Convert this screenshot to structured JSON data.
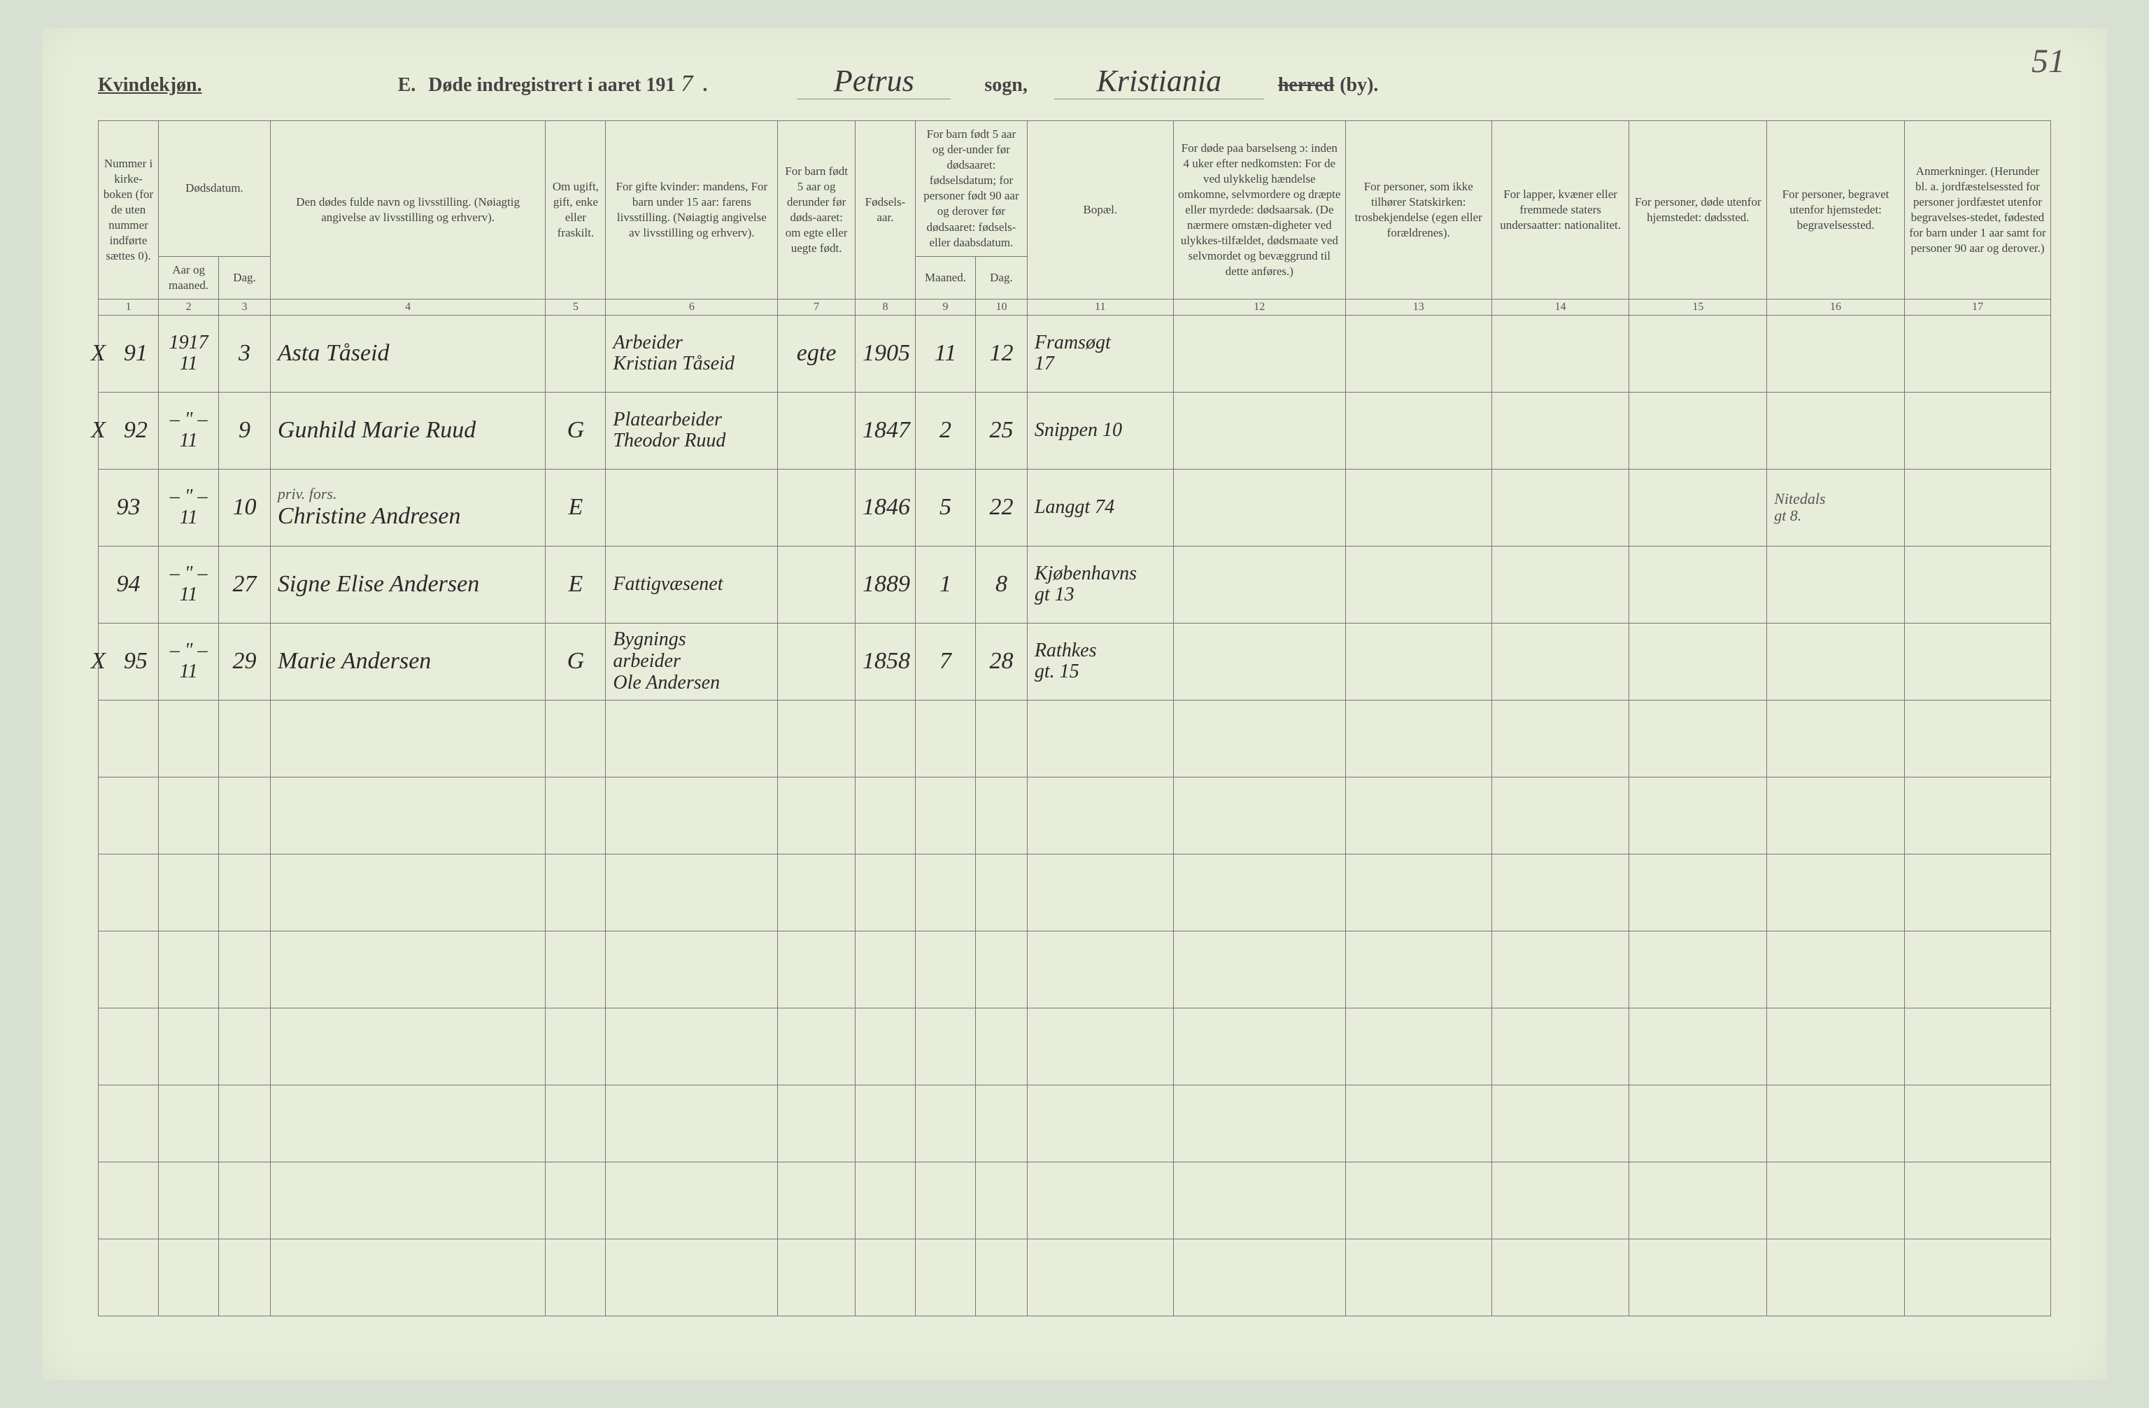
{
  "page_number_handwritten": "51",
  "header": {
    "gender_label": "Kvindekjøn.",
    "form_letter": "E.",
    "title_prefix": "Døde indregistrert i aaret 191",
    "year_suffix_hw": "7",
    "period": ".",
    "parish_hw": "Petrus",
    "sogn_label": "sogn,",
    "city_hw": "Kristiania",
    "herred_struck": "herred",
    "by_label": "(by)."
  },
  "columns": {
    "h1": "Nummer i kirke-boken (for de uten nummer indførte sættes 0).",
    "h2_group": "Dødsdatum.",
    "h2a": "Aar og maaned.",
    "h2b": "Dag.",
    "h4": "Den dødes fulde navn og livsstilling. (Nøiagtig angivelse av livsstilling og erhverv).",
    "h5": "Om ugift, gift, enke eller fraskilt.",
    "h6": "For gifte kvinder: mandens, For barn under 15 aar: farens livsstilling. (Nøiagtig angivelse av livsstilling og erhverv).",
    "h7": "For barn født 5 aar og derunder før døds-aaret: om egte eller uegte født.",
    "h8": "Fødsels-aar.",
    "h9_group": "For barn født 5 aar og der-under før dødsaaret: fødselsdatum; for personer født 90 aar og derover før dødsaaret: fødsels- eller daabsdatum.",
    "h9a": "Maaned.",
    "h9b": "Dag.",
    "h11": "Bopæl.",
    "h12": "For døde paa barselseng ɔ: inden 4 uker efter nedkomsten: For de ved ulykkelig hændelse omkomne, selvmordere og dræpte eller myrdede: dødsaarsak. (De nærmere omstæn-digheter ved ulykkes-tilfældet, dødsmaate ved selvmordet og bevæggrund til dette anføres.)",
    "h13": "For personer, som ikke tilhører Statskirken: trosbekjendelse (egen eller forældrenes).",
    "h14": "For lapper, kvæner eller fremmede staters undersaatter: nationalitet.",
    "h15": "For personer, døde utenfor hjemstedet: dødssted.",
    "h16": "For personer, begravet utenfor hjemstedet: begravelsessted.",
    "h17": "Anmerkninger. (Herunder bl. a. jordfæstelsessted for personer jordfæstet utenfor begravelses-stedet, fødested for barn under 1 aar samt for personer 90 aar og derover.)"
  },
  "colnums": [
    "1",
    "2",
    "3",
    "4",
    "5",
    "6",
    "7",
    "8",
    "9",
    "10",
    "11",
    "12",
    "13",
    "14",
    "15",
    "16",
    "17"
  ],
  "rows": [
    {
      "mark": "X",
      "num": "91",
      "year_month_top": "1917",
      "year_month": "11",
      "day": "3",
      "name": "Asta Tåseid",
      "status": "",
      "father_occ_l1": "Arbeider",
      "father_occ_l2": "Kristian Tåseid",
      "legit": "egte",
      "birth_year": "1905",
      "b_month": "11",
      "b_day": "12",
      "residence_l1": "Framsøgt",
      "residence_l2": "17",
      "c12": "",
      "c13": "",
      "c14": "",
      "c15": "",
      "c16": "",
      "c17": ""
    },
    {
      "mark": "X",
      "num": "92",
      "year_month_top": "– \" –",
      "year_month": "11",
      "day": "9",
      "name": "Gunhild Marie Ruud",
      "status": "G",
      "father_occ_l1": "Platearbeider",
      "father_occ_l2": "Theodor Ruud",
      "legit": "",
      "birth_year": "1847",
      "b_month": "2",
      "b_day": "25",
      "residence_l1": "Snippen 10",
      "residence_l2": "",
      "c12": "",
      "c13": "",
      "c14": "",
      "c15": "",
      "c16": "",
      "c17": ""
    },
    {
      "mark": "",
      "num": "93",
      "year_month_top": "– \" –",
      "year_month": "11",
      "day": "10",
      "name_note": "priv. fors.",
      "name": "Christine Andresen",
      "status": "E",
      "father_occ_l1": "",
      "father_occ_l2": "",
      "legit": "",
      "birth_year": "1846",
      "b_month": "5",
      "b_day": "22",
      "residence_l1": "Langgt 74",
      "residence_l2": "",
      "c12": "",
      "c13": "",
      "c14": "",
      "c15": "",
      "c16_l1": "Nitedals",
      "c16_l2": "gt 8.",
      "c17": ""
    },
    {
      "mark": "",
      "num": "94",
      "year_month_top": "– \" –",
      "year_month": "11",
      "day": "27",
      "name": "Signe Elise Andersen",
      "status": "E",
      "father_occ_l1": "Fattigvæsenet",
      "father_occ_l2": "",
      "legit": "",
      "birth_year": "1889",
      "b_month": "1",
      "b_day": "8",
      "residence_l1": "Kjøbenhavns",
      "residence_l2": "gt 13",
      "c12": "",
      "c13": "",
      "c14": "",
      "c15": "",
      "c16": "",
      "c17": ""
    },
    {
      "mark": "X",
      "num": "95",
      "year_month_top": "– \" –",
      "year_month": "11",
      "day": "29",
      "name": "Marie Andersen",
      "status": "G",
      "father_occ_l1": "Bygnings",
      "father_occ_l2": "arbeider",
      "father_occ_l3": "Ole Andersen",
      "legit": "",
      "birth_year": "1858",
      "b_month": "7",
      "b_day": "28",
      "residence_l1": "Rathkes",
      "residence_l2": "gt. 15",
      "c12": "",
      "c13": "",
      "c14": "",
      "c15": "",
      "c16": "",
      "c17": ""
    }
  ],
  "empty_rows": 8,
  "colors": {
    "page_bg": "#e8edda",
    "outer_bg": "#d7e0d2",
    "border": "#777",
    "print_text": "#444",
    "hw_text": "#2a2a2a"
  }
}
